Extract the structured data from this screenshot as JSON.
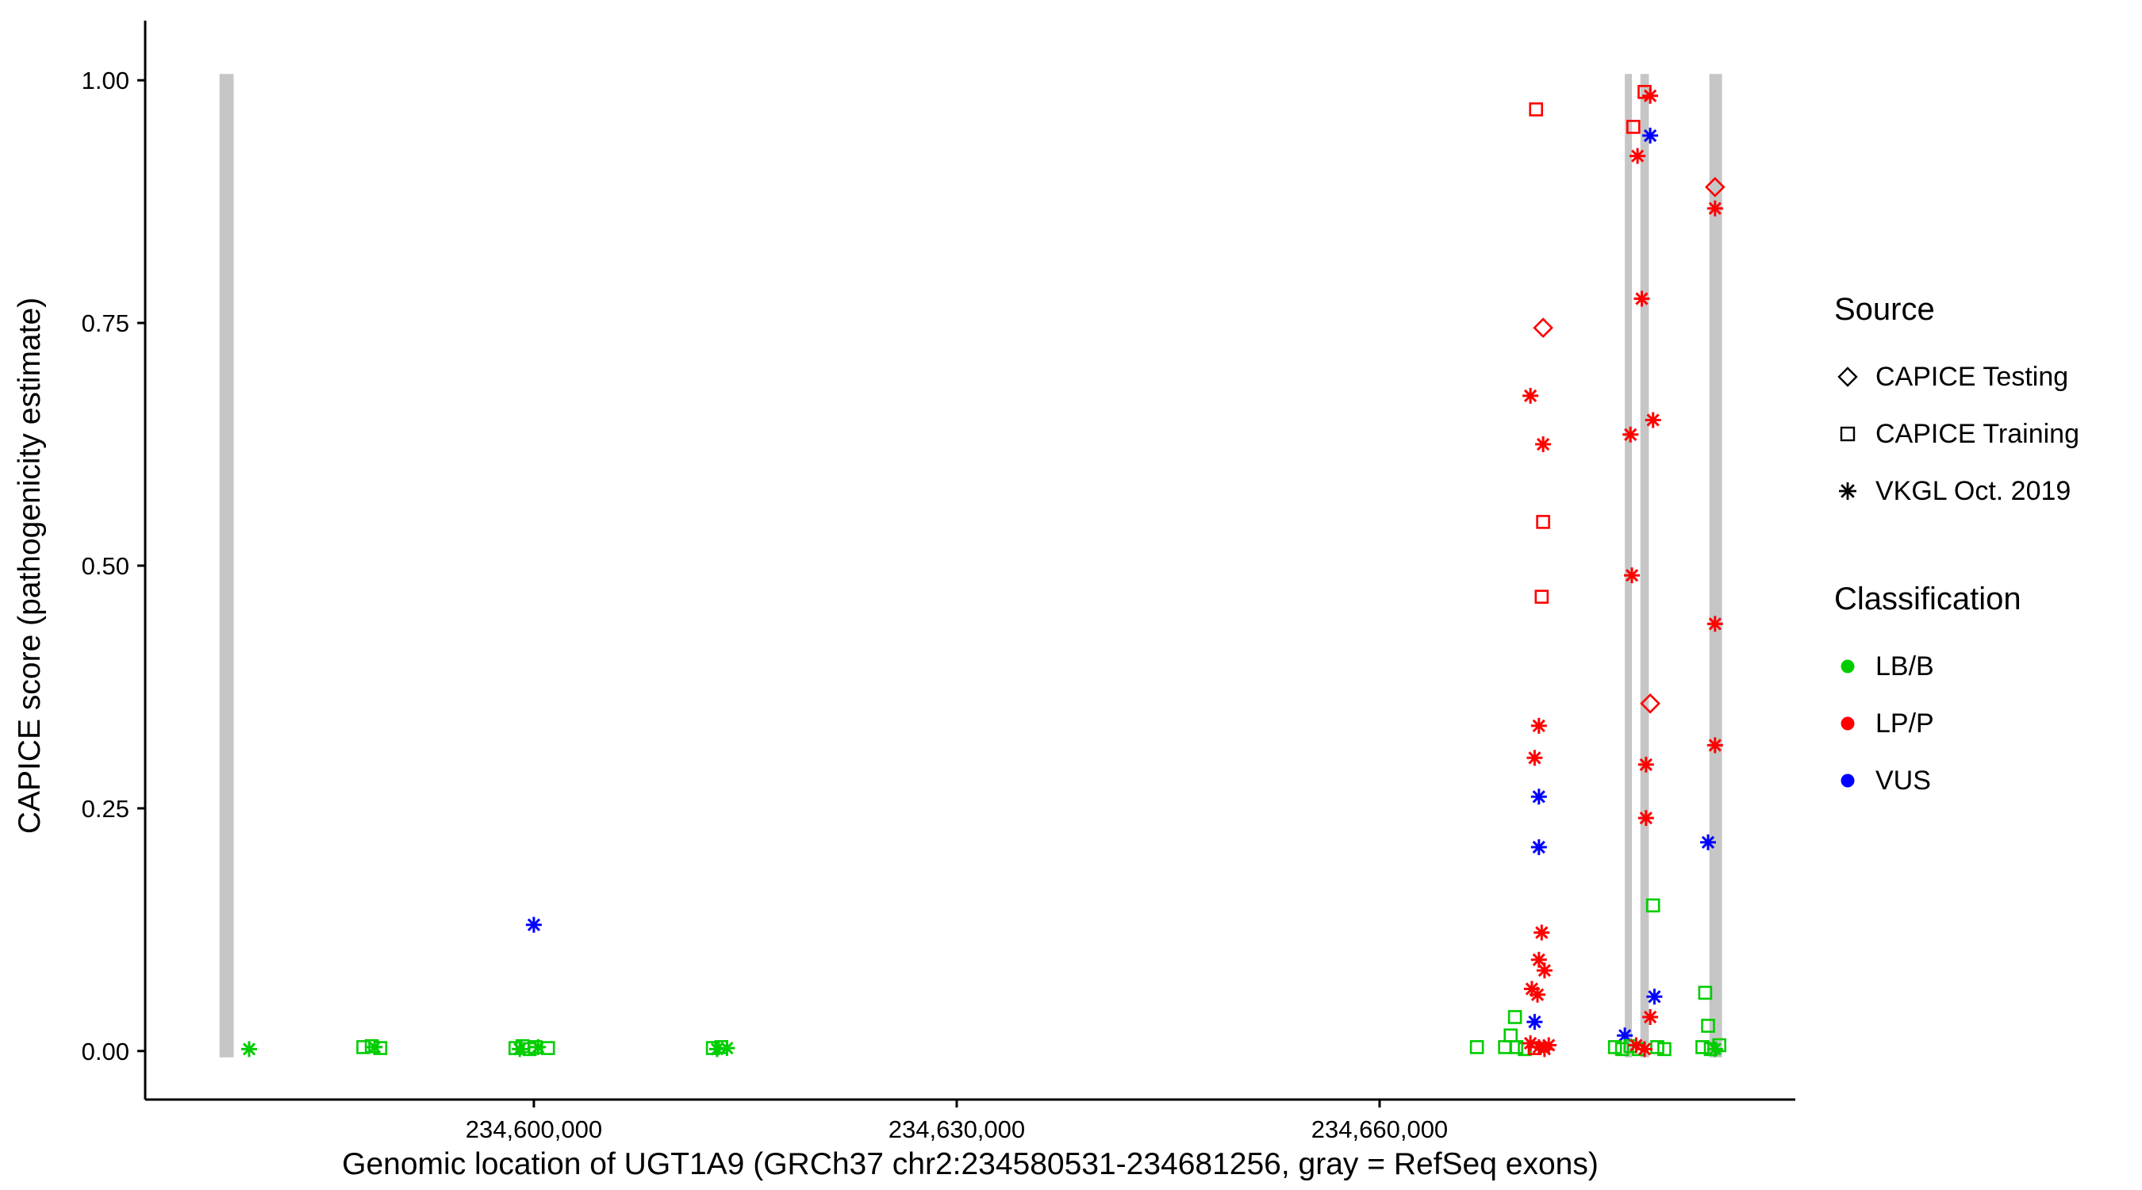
{
  "legend": {
    "source": {
      "title": "Source",
      "items": [
        {
          "shape": "diamond",
          "label": "CAPICE Testing"
        },
        {
          "shape": "square",
          "label": "CAPICE Training"
        },
        {
          "shape": "asterisk",
          "label": "VKGL Oct. 2019"
        }
      ]
    },
    "classification": {
      "title": "Classification",
      "items": [
        {
          "label": "LB/B",
          "color": "#00CD00"
        },
        {
          "label": "LP/P",
          "color": "#FF0000"
        },
        {
          "label": "VUS",
          "color": "#0000FF"
        }
      ]
    }
  },
  "chart_data": {
    "type": "scatter",
    "title": "",
    "xlabel": "Genomic location of UGT1A9 (GRCh37 chr2:234580531-234681256, gray = RefSeq exons)",
    "ylabel": "CAPICE score (pathogenicity estimate)",
    "x_domain": [
      234572425,
      234689493
    ],
    "y_domain": [
      -0.05,
      1.05
    ],
    "x_ticks": [
      {
        "value": 234600000,
        "label": "234,600,000"
      },
      {
        "value": 234630000,
        "label": "234,630,000"
      },
      {
        "value": 234660000,
        "label": "234,660,000"
      }
    ],
    "y_ticks": [
      {
        "value": 0.0,
        "label": "0.00"
      },
      {
        "value": 0.25,
        "label": "0.25"
      },
      {
        "value": 0.5,
        "label": "0.50"
      },
      {
        "value": 0.75,
        "label": "0.75"
      },
      {
        "value": 1.0,
        "label": "1.00"
      }
    ],
    "grid": "off",
    "legend_position": "right",
    "exon_color": "#C6C6C6",
    "shape_by_source": {
      "CAPICE Testing": "diamond",
      "CAPICE Training": "square",
      "VKGL Oct. 2019": "asterisk"
    },
    "color_by_classification": {
      "LB/B": "#00CD00",
      "LP/P": "#FF0000",
      "VUS": "#0000FF"
    },
    "exon_bars": [
      {
        "x_start": 234577700,
        "x_end": 234578700,
        "y_start": 0,
        "y_end": 1
      },
      {
        "x_start": 234677400,
        "x_end": 234677900,
        "y_start": 0,
        "y_end": 1
      },
      {
        "x_start": 234678500,
        "x_end": 234679100,
        "y_start": 0,
        "y_end": 1
      },
      {
        "x_start": 234683400,
        "x_end": 234684300,
        "y_start": 0,
        "y_end": 1
      }
    ],
    "points": [
      {
        "x": 234579800,
        "y": 0.002,
        "source": "VKGL Oct. 2019",
        "classification": "LB/B"
      },
      {
        "x": 234587900,
        "y": 0.004,
        "source": "CAPICE Training",
        "classification": "LB/B"
      },
      {
        "x": 234588500,
        "y": 0.005,
        "source": "CAPICE Training",
        "classification": "LB/B"
      },
      {
        "x": 234589100,
        "y": 0.003,
        "source": "CAPICE Training",
        "classification": "LB/B"
      },
      {
        "x": 234588700,
        "y": 0.004,
        "source": "VKGL Oct. 2019",
        "classification": "LB/B"
      },
      {
        "x": 234598700,
        "y": 0.003,
        "source": "CAPICE Training",
        "classification": "LB/B"
      },
      {
        "x": 234599200,
        "y": 0.005,
        "source": "CAPICE Training",
        "classification": "LB/B"
      },
      {
        "x": 234599700,
        "y": 0.002,
        "source": "CAPICE Training",
        "classification": "LB/B"
      },
      {
        "x": 234600100,
        "y": 0.004,
        "source": "CAPICE Training",
        "classification": "LB/B"
      },
      {
        "x": 234601000,
        "y": 0.003,
        "source": "CAPICE Training",
        "classification": "LB/B"
      },
      {
        "x": 234599000,
        "y": 0.002,
        "source": "VKGL Oct. 2019",
        "classification": "LB/B"
      },
      {
        "x": 234600300,
        "y": 0.004,
        "source": "VKGL Oct. 2019",
        "classification": "LB/B"
      },
      {
        "x": 234600000,
        "y": 0.13,
        "source": "VKGL Oct. 2019",
        "classification": "VUS"
      },
      {
        "x": 234612700,
        "y": 0.003,
        "source": "CAPICE Training",
        "classification": "LB/B"
      },
      {
        "x": 234613300,
        "y": 0.004,
        "source": "CAPICE Training",
        "classification": "LB/B"
      },
      {
        "x": 234613000,
        "y": 0.002,
        "source": "VKGL Oct. 2019",
        "classification": "LB/B"
      },
      {
        "x": 234613700,
        "y": 0.003,
        "source": "VKGL Oct. 2019",
        "classification": "LB/B"
      },
      {
        "x": 234666900,
        "y": 0.004,
        "source": "CAPICE Training",
        "classification": "LB/B"
      },
      {
        "x": 234671100,
        "y": 0.97,
        "source": "CAPICE Training",
        "classification": "LP/P"
      },
      {
        "x": 234671600,
        "y": 0.745,
        "source": "CAPICE Testing",
        "classification": "LP/P"
      },
      {
        "x": 234670700,
        "y": 0.675,
        "source": "VKGL Oct. 2019",
        "classification": "LP/P"
      },
      {
        "x": 234671600,
        "y": 0.625,
        "source": "VKGL Oct. 2019",
        "classification": "LP/P"
      },
      {
        "x": 234671600,
        "y": 0.545,
        "source": "CAPICE Training",
        "classification": "LP/P"
      },
      {
        "x": 234671500,
        "y": 0.468,
        "source": "CAPICE Training",
        "classification": "LP/P"
      },
      {
        "x": 234671300,
        "y": 0.335,
        "source": "VKGL Oct. 2019",
        "classification": "LP/P"
      },
      {
        "x": 234671000,
        "y": 0.302,
        "source": "VKGL Oct. 2019",
        "classification": "LP/P"
      },
      {
        "x": 234671300,
        "y": 0.262,
        "source": "VKGL Oct. 2019",
        "classification": "VUS"
      },
      {
        "x": 234671300,
        "y": 0.21,
        "source": "VKGL Oct. 2019",
        "classification": "VUS"
      },
      {
        "x": 234671500,
        "y": 0.122,
        "source": "VKGL Oct. 2019",
        "classification": "LP/P"
      },
      {
        "x": 234671300,
        "y": 0.094,
        "source": "VKGL Oct. 2019",
        "classification": "LP/P"
      },
      {
        "x": 234671700,
        "y": 0.083,
        "source": "VKGL Oct. 2019",
        "classification": "LP/P"
      },
      {
        "x": 234670800,
        "y": 0.064,
        "source": "VKGL Oct. 2019",
        "classification": "LP/P"
      },
      {
        "x": 234671200,
        "y": 0.058,
        "source": "VKGL Oct. 2019",
        "classification": "LP/P"
      },
      {
        "x": 234671000,
        "y": 0.03,
        "source": "VKGL Oct. 2019",
        "classification": "VUS"
      },
      {
        "x": 234669600,
        "y": 0.035,
        "source": "CAPICE Training",
        "classification": "LB/B"
      },
      {
        "x": 234669300,
        "y": 0.016,
        "source": "CAPICE Training",
        "classification": "LB/B"
      },
      {
        "x": 234668900,
        "y": 0.004,
        "source": "CAPICE Training",
        "classification": "LB/B"
      },
      {
        "x": 234669700,
        "y": 0.004,
        "source": "CAPICE Training",
        "classification": "LB/B"
      },
      {
        "x": 234670300,
        "y": 0.002,
        "source": "CAPICE Training",
        "classification": "LB/B"
      },
      {
        "x": 234670700,
        "y": 0.008,
        "source": "VKGL Oct. 2019",
        "classification": "LP/P"
      },
      {
        "x": 234671300,
        "y": 0.004,
        "source": "VKGL Oct. 2019",
        "classification": "LP/P"
      },
      {
        "x": 234671700,
        "y": 0.002,
        "source": "VKGL Oct. 2019",
        "classification": "LP/P"
      },
      {
        "x": 234672000,
        "y": 0.006,
        "source": "VKGL Oct. 2019",
        "classification": "LP/P"
      },
      {
        "x": 234671000,
        "y": 0.003,
        "source": "CAPICE Training",
        "classification": "LP/P"
      },
      {
        "x": 234678800,
        "y": 0.988,
        "source": "CAPICE Training",
        "classification": "LP/P"
      },
      {
        "x": 234679200,
        "y": 0.984,
        "source": "VKGL Oct. 2019",
        "classification": "LP/P"
      },
      {
        "x": 234678000,
        "y": 0.952,
        "source": "CAPICE Training",
        "classification": "LP/P"
      },
      {
        "x": 234679200,
        "y": 0.943,
        "source": "VKGL Oct. 2019",
        "classification": "VUS"
      },
      {
        "x": 234678300,
        "y": 0.922,
        "source": "VKGL Oct. 2019",
        "classification": "LP/P"
      },
      {
        "x": 234678600,
        "y": 0.775,
        "source": "VKGL Oct. 2019",
        "classification": "LP/P"
      },
      {
        "x": 234679400,
        "y": 0.65,
        "source": "VKGL Oct. 2019",
        "classification": "LP/P"
      },
      {
        "x": 234677800,
        "y": 0.635,
        "source": "VKGL Oct. 2019",
        "classification": "LP/P"
      },
      {
        "x": 234677900,
        "y": 0.49,
        "source": "VKGL Oct. 2019",
        "classification": "LP/P"
      },
      {
        "x": 234679200,
        "y": 0.358,
        "source": "CAPICE Testing",
        "classification": "LP/P"
      },
      {
        "x": 234678900,
        "y": 0.295,
        "source": "VKGL Oct. 2019",
        "classification": "LP/P"
      },
      {
        "x": 234678900,
        "y": 0.24,
        "source": "VKGL Oct. 2019",
        "classification": "LP/P"
      },
      {
        "x": 234679400,
        "y": 0.15,
        "source": "CAPICE Training",
        "classification": "LB/B"
      },
      {
        "x": 234679500,
        "y": 0.056,
        "source": "VKGL Oct. 2019",
        "classification": "VUS"
      },
      {
        "x": 234679200,
        "y": 0.035,
        "source": "VKGL Oct. 2019",
        "classification": "LP/P"
      },
      {
        "x": 234677400,
        "y": 0.016,
        "source": "VKGL Oct. 2019",
        "classification": "VUS"
      },
      {
        "x": 234676700,
        "y": 0.004,
        "source": "CAPICE Training",
        "classification": "LB/B"
      },
      {
        "x": 234677200,
        "y": 0.002,
        "source": "CAPICE Training",
        "classification": "LB/B"
      },
      {
        "x": 234677800,
        "y": 0.005,
        "source": "CAPICE Training",
        "classification": "LB/B"
      },
      {
        "x": 234678400,
        "y": 0.002,
        "source": "CAPICE Training",
        "classification": "LB/B"
      },
      {
        "x": 234679700,
        "y": 0.004,
        "source": "CAPICE Training",
        "classification": "LB/B"
      },
      {
        "x": 234680200,
        "y": 0.002,
        "source": "CAPICE Training",
        "classification": "LB/B"
      },
      {
        "x": 234678200,
        "y": 0.006,
        "source": "VKGL Oct. 2019",
        "classification": "LP/P"
      },
      {
        "x": 234678800,
        "y": 0.002,
        "source": "VKGL Oct. 2019",
        "classification": "LP/P"
      },
      {
        "x": 234683800,
        "y": 0.89,
        "source": "CAPICE Testing",
        "classification": "LP/P"
      },
      {
        "x": 234683800,
        "y": 0.868,
        "source": "VKGL Oct. 2019",
        "classification": "LP/P"
      },
      {
        "x": 234683800,
        "y": 0.44,
        "source": "VKGL Oct. 2019",
        "classification": "LP/P"
      },
      {
        "x": 234683800,
        "y": 0.315,
        "source": "VKGL Oct. 2019",
        "classification": "LP/P"
      },
      {
        "x": 234683300,
        "y": 0.215,
        "source": "VKGL Oct. 2019",
        "classification": "VUS"
      },
      {
        "x": 234683100,
        "y": 0.06,
        "source": "CAPICE Training",
        "classification": "LB/B"
      },
      {
        "x": 234683300,
        "y": 0.026,
        "source": "CAPICE Training",
        "classification": "LB/B"
      },
      {
        "x": 234682900,
        "y": 0.004,
        "source": "CAPICE Training",
        "classification": "LB/B"
      },
      {
        "x": 234683500,
        "y": 0.002,
        "source": "CAPICE Training",
        "classification": "LB/B"
      },
      {
        "x": 234684100,
        "y": 0.006,
        "source": "CAPICE Training",
        "classification": "LB/B"
      },
      {
        "x": 234683800,
        "y": 0.002,
        "source": "VKGL Oct. 2019",
        "classification": "LB/B"
      }
    ]
  }
}
